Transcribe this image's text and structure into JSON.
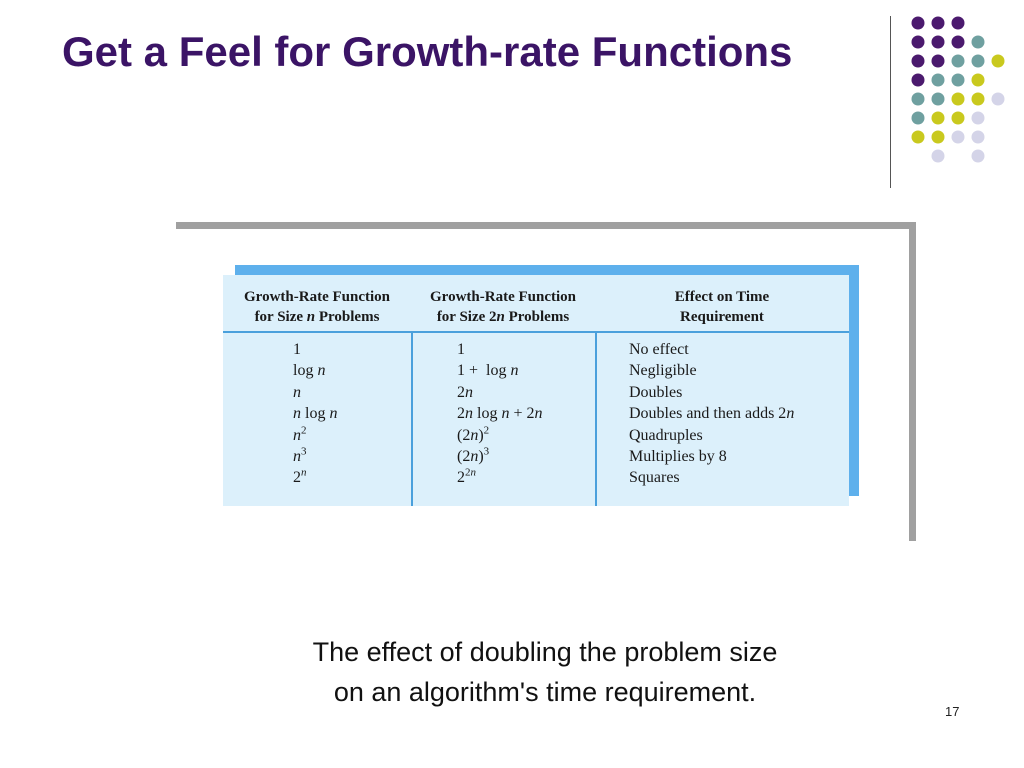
{
  "title": "Get a Feel for Growth-rate Functions",
  "table": {
    "headers": [
      [
        "Growth-Rate Function",
        "for Size n Problems"
      ],
      [
        "Growth-Rate Function",
        "for Size 2n Problems"
      ],
      [
        "Effect on Time",
        "Requirement"
      ]
    ],
    "columns": [
      [
        "1",
        "log n",
        "n",
        "n log n",
        {
          "base": "n",
          "sup": "2"
        },
        {
          "base": "n",
          "sup": "3"
        },
        {
          "base": "2",
          "sup": "n"
        }
      ],
      [
        "1",
        "1 +  log n",
        "2n",
        "2n log n + 2n",
        {
          "base": "(2n)",
          "sup": "2"
        },
        {
          "base": "(2n)",
          "sup": "3"
        },
        {
          "base": "2",
          "sup": "2n"
        }
      ],
      [
        "No effect",
        "Negligible",
        "Doubles",
        "Doubles and then adds 2n",
        "Quadruples",
        "Multiplies by 8",
        "Squares"
      ]
    ]
  },
  "caption": [
    "The effect of doubling the problem size",
    "on an algorithm's time requirement."
  ],
  "page_number": "17"
}
